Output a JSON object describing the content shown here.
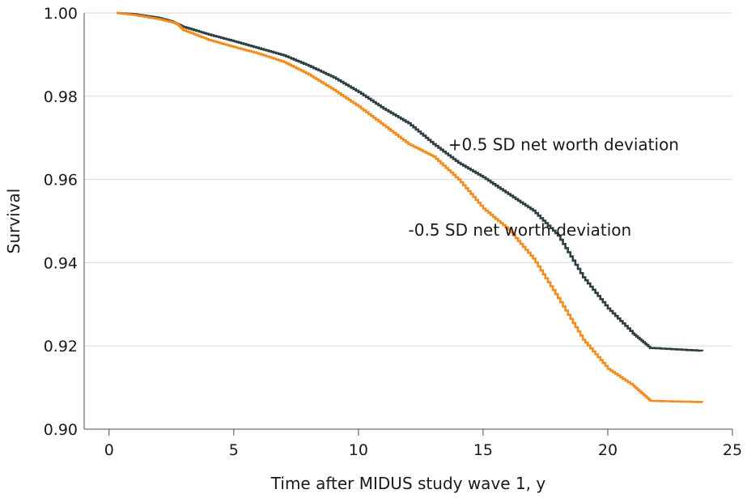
{
  "chart_data": {
    "type": "line",
    "title": "",
    "xlabel": "Time after MIDUS study wave 1, y",
    "ylabel": "Survival",
    "xlim": [
      -1,
      25
    ],
    "ylim": [
      0.9,
      1.0
    ],
    "x_ticks": [
      0,
      5,
      10,
      15,
      20,
      25
    ],
    "x_tick_labels": [
      "0",
      "5",
      "10",
      "15",
      "20",
      "25"
    ],
    "y_ticks": [
      0.9,
      0.92,
      0.94,
      0.96,
      0.98,
      1.0
    ],
    "y_tick_labels": [
      "0.90",
      "0.92",
      "0.94",
      "0.96",
      "0.98",
      "1.00"
    ],
    "grid": "horizontal",
    "series": [
      {
        "name": "+0.5 SD net worth deviation",
        "color": "#2e3f44",
        "points": [
          [
            0.3,
            1.0
          ],
          [
            1.0,
            0.9997
          ],
          [
            2.0,
            0.9988
          ],
          [
            2.5,
            0.998
          ],
          [
            3.0,
            0.9966
          ],
          [
            4.0,
            0.9948
          ],
          [
            5.0,
            0.9932
          ],
          [
            6.0,
            0.9915
          ],
          [
            7.0,
            0.9898
          ],
          [
            8.0,
            0.9873
          ],
          [
            9.0,
            0.9845
          ],
          [
            10.0,
            0.981
          ],
          [
            11.0,
            0.977
          ],
          [
            12.0,
            0.9735
          ],
          [
            13.0,
            0.9685
          ],
          [
            14.0,
            0.964
          ],
          [
            15.0,
            0.9605
          ],
          [
            16.0,
            0.9565
          ],
          [
            17.0,
            0.9525
          ],
          [
            18.0,
            0.9465
          ],
          [
            19.0,
            0.9365
          ],
          [
            20.0,
            0.929
          ],
          [
            21.0,
            0.923
          ],
          [
            21.7,
            0.9195
          ],
          [
            23.8,
            0.9188
          ]
        ]
      },
      {
        "name": "-0.5 SD net worth deviation",
        "color": "#f28c1e",
        "points": [
          [
            0.3,
            1.0
          ],
          [
            1.0,
            0.9995
          ],
          [
            2.0,
            0.9985
          ],
          [
            2.7,
            0.9975
          ],
          [
            3.0,
            0.9958
          ],
          [
            4.0,
            0.9935
          ],
          [
            5.0,
            0.9918
          ],
          [
            6.0,
            0.9902
          ],
          [
            7.0,
            0.9882
          ],
          [
            8.0,
            0.9852
          ],
          [
            9.0,
            0.9815
          ],
          [
            10.0,
            0.9775
          ],
          [
            11.0,
            0.973
          ],
          [
            12.0,
            0.9685
          ],
          [
            13.0,
            0.9655
          ],
          [
            14.0,
            0.96
          ],
          [
            15.0,
            0.953
          ],
          [
            16.0,
            0.948
          ],
          [
            17.0,
            0.941
          ],
          [
            18.0,
            0.9315
          ],
          [
            19.0,
            0.9215
          ],
          [
            20.0,
            0.9145
          ],
          [
            21.0,
            0.9105
          ],
          [
            21.7,
            0.9068
          ],
          [
            23.8,
            0.9065
          ]
        ]
      }
    ],
    "annotations": [
      {
        "text": "+0.5 SD net worth deviation",
        "x": 13.6,
        "y": 0.967
      },
      {
        "text": "-0.5 SD net worth deviation",
        "x": 12.0,
        "y": 0.9465
      }
    ]
  }
}
